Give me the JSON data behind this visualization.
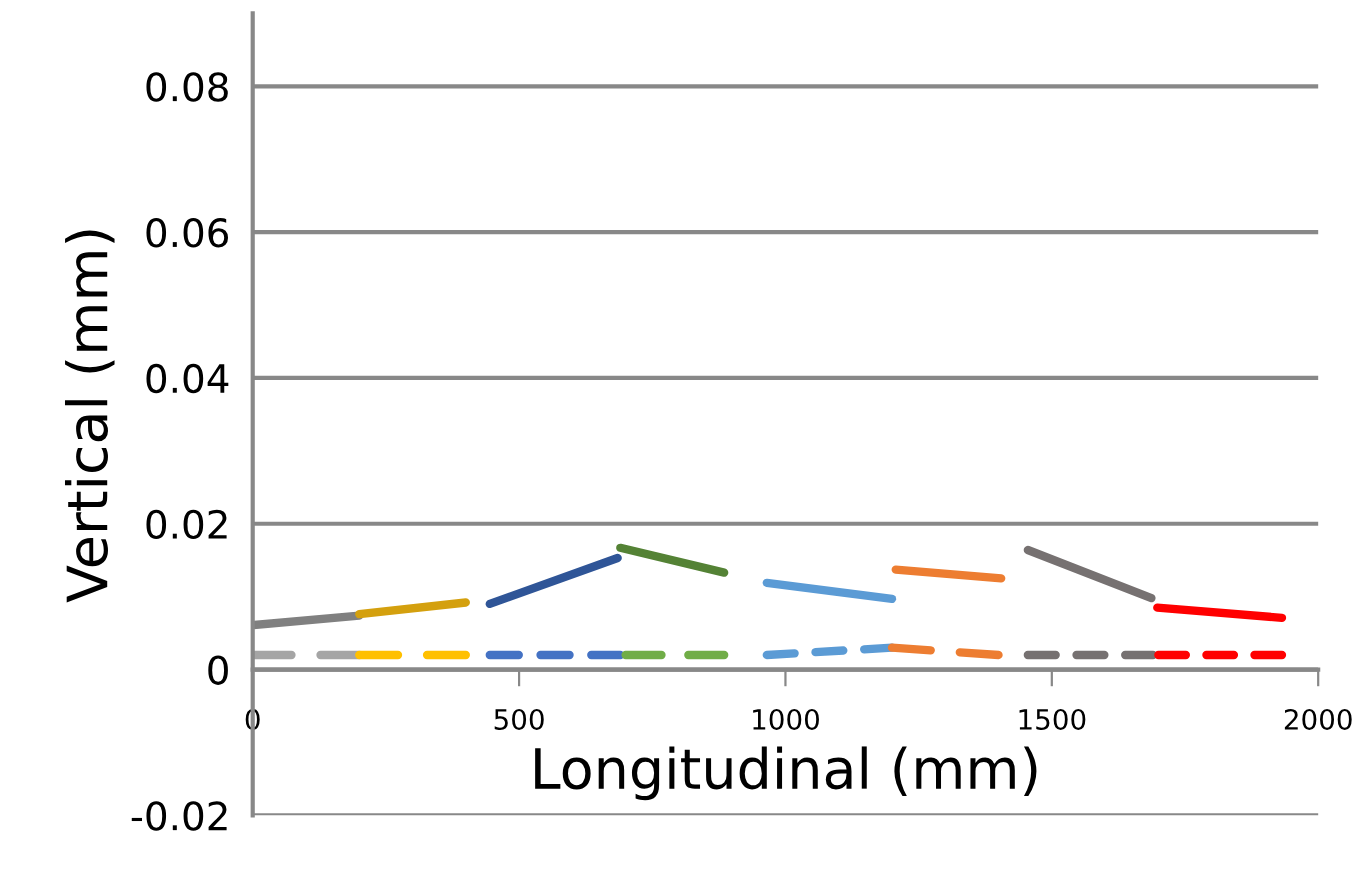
{
  "chart_data": {
    "type": "line",
    "xlabel": "Longitudinal (mm)",
    "ylabel": "Vertical (mm)",
    "xlim": [
      0,
      2000
    ],
    "xticks": [
      0,
      500,
      1000,
      1500,
      2000
    ],
    "ylim": [
      -0.02,
      0.09
    ],
    "yticks": [
      -0.02,
      0,
      0.02,
      0.04,
      0.06,
      0.08
    ],
    "grid": "y",
    "marker": "none",
    "series": [
      {
        "color": "#808080",
        "line_style": "solid",
        "x": [
          0,
          200
        ],
        "values": [
          0.0061,
          0.0074
        ]
      },
      {
        "color": "#d4a00e",
        "line_style": "solid",
        "x": [
          200,
          400
        ],
        "values": [
          0.0076,
          0.0092
        ]
      },
      {
        "color": "#2f5597",
        "line_style": "solid",
        "x": [
          445,
          685
        ],
        "values": [
          0.009,
          0.0153
        ]
      },
      {
        "color": "#548235",
        "line_style": "solid",
        "x": [
          690,
          885
        ],
        "values": [
          0.0167,
          0.0133
        ]
      },
      {
        "color": "#5b9bd5",
        "line_style": "solid",
        "x": [
          965,
          1200
        ],
        "values": [
          0.0119,
          0.0097
        ]
      },
      {
        "color": "#ed7d31",
        "line_style": "solid",
        "x": [
          1207,
          1405
        ],
        "values": [
          0.0137,
          0.0125
        ]
      },
      {
        "color": "#767171",
        "line_style": "solid",
        "x": [
          1455,
          1687
        ],
        "values": [
          0.0164,
          0.0098
        ]
      },
      {
        "color": "#ff0000",
        "line_style": "solid",
        "x": [
          1698,
          1932
        ],
        "values": [
          0.0085,
          0.0071
        ]
      },
      {
        "color": "#a5a5a5",
        "line_style": "dashed",
        "x": [
          0,
          200
        ],
        "values": [
          0.002,
          0.002
        ]
      },
      {
        "color": "#ffc000",
        "line_style": "dashed",
        "x": [
          200,
          400
        ],
        "values": [
          0.002,
          0.002
        ]
      },
      {
        "color": "#4472c4",
        "line_style": "dashed",
        "x": [
          445,
          690
        ],
        "values": [
          0.002,
          0.002
        ]
      },
      {
        "color": "#70ad47",
        "line_style": "dashed",
        "x": [
          700,
          885
        ],
        "values": [
          0.002,
          0.002
        ]
      },
      {
        "color": "#5b9bd5",
        "line_style": "dashed",
        "x": [
          965,
          1200
        ],
        "values": [
          0.002,
          0.003
        ]
      },
      {
        "color": "#ed7d31",
        "line_style": "dashed",
        "x": [
          1200,
          1400
        ],
        "values": [
          0.003,
          0.002
        ]
      },
      {
        "color": "#767171",
        "line_style": "dashed",
        "x": [
          1455,
          1690
        ],
        "values": [
          0.002,
          0.002
        ]
      },
      {
        "color": "#ff0000",
        "line_style": "dashed",
        "x": [
          1700,
          1932
        ],
        "values": [
          0.002,
          0.002
        ]
      }
    ]
  }
}
